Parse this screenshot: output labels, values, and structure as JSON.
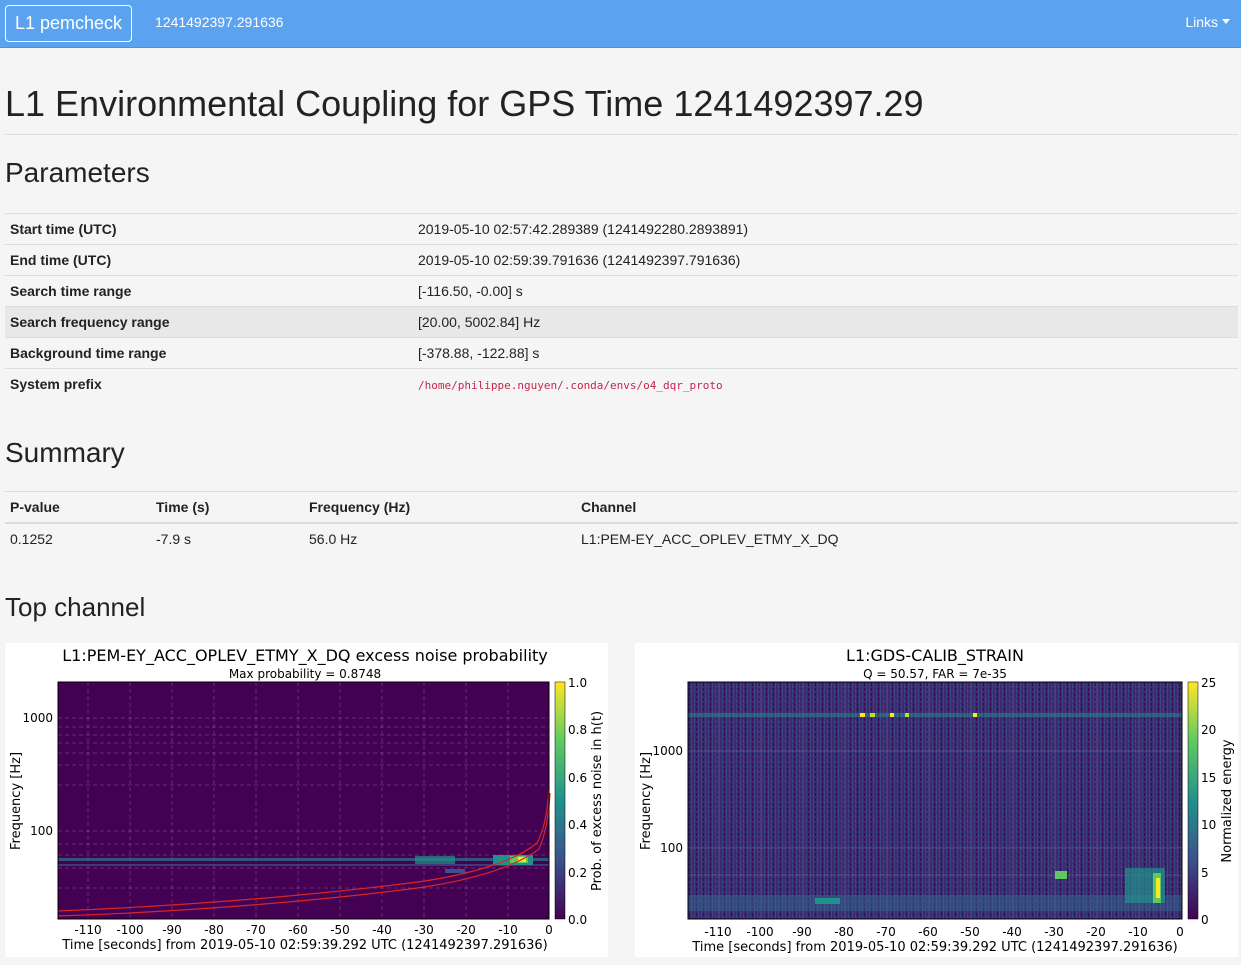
{
  "navbar": {
    "brand": "L1 pemcheck",
    "gps_time": "1241492397.291636",
    "links_label": "Links"
  },
  "page_title": "L1 Environmental Coupling for GPS Time 1241492397.29",
  "parameters": {
    "heading": "Parameters",
    "rows": [
      {
        "label": "Start time (UTC)",
        "value": "2019-05-10 02:57:42.289389 (1241492280.2893891)"
      },
      {
        "label": "End time (UTC)",
        "value": "2019-05-10 02:59:39.791636 (1241492397.791636)"
      },
      {
        "label": "Search time range",
        "value": "[-116.50, -0.00] s"
      },
      {
        "label": "Search frequency range",
        "value": "[20.00, 5002.84] Hz"
      },
      {
        "label": "Background time range",
        "value": "[-378.88, -122.88] s"
      },
      {
        "label": "System prefix",
        "value": "/home/philippe.nguyen/.conda/envs/o4_dqr_proto"
      }
    ]
  },
  "summary": {
    "heading": "Summary",
    "columns": [
      "P-value",
      "Time (s)",
      "Frequency (Hz)",
      "Channel"
    ],
    "row": [
      "0.1252",
      "-7.9 s",
      "56.0 Hz",
      "L1:PEM-EY_ACC_OPLEV_ETMY_X_DQ"
    ]
  },
  "top_channel": {
    "heading": "Top channel",
    "plots": [
      {
        "title": "L1:PEM-EY_ACC_OPLEV_ETMY_X_DQ excess noise probability",
        "subtitle": "Max probability = 0.8748",
        "xlabel": "Time [seconds] from 2019-05-10 02:59:39.292 UTC (1241492397.291636)",
        "ylabel": "Frequency [Hz]",
        "cbar_label": "Prob. of excess noise in h(t)",
        "xticks": [
          "-110",
          "-100",
          "-90",
          "-80",
          "-70",
          "-60",
          "-50",
          "-40",
          "-30",
          "-20",
          "-10",
          "0"
        ],
        "yticks": [
          "1000",
          "100"
        ],
        "cticks": [
          "1.0",
          "0.8",
          "0.6",
          "0.4",
          "0.2",
          "0.0"
        ]
      },
      {
        "title": "L1:GDS-CALIB_STRAIN",
        "subtitle": "Q = 50.57, FAR = 7e-35",
        "xlabel": "Time [seconds] from 2019-05-10 02:59:39.292 UTC (1241492397.291636)",
        "ylabel": "Frequency [Hz]",
        "cbar_label": "Normalized energy",
        "xticks": [
          "-110",
          "-100",
          "-90",
          "-80",
          "-70",
          "-60",
          "-50",
          "-40",
          "-30",
          "-20",
          "-10",
          "0"
        ],
        "yticks": [
          "1000",
          "100"
        ],
        "cticks": [
          "25",
          "20",
          "15",
          "10",
          "5",
          "0"
        ]
      }
    ]
  },
  "colors": {
    "navbar": "#5ba3ee",
    "viridis_low": "#440154",
    "viridis_mid": "#21918c",
    "viridis_high": "#fde725",
    "track": "#d62728"
  }
}
